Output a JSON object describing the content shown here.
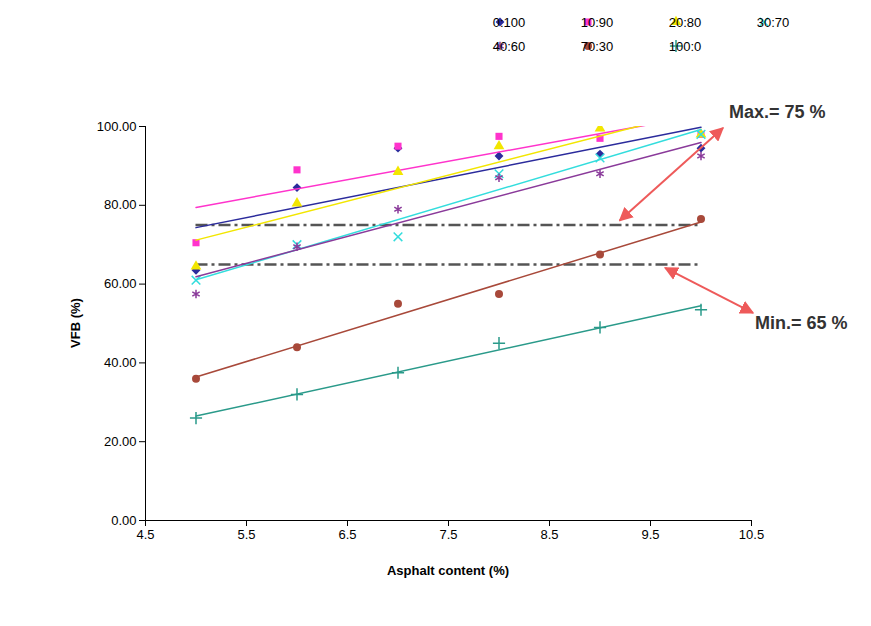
{
  "chart_data": {
    "type": "scatter",
    "x_label": "Asphalt content (%)",
    "y_label": "VFB (%)",
    "xlim": [
      4.5,
      10.5
    ],
    "xticks": [
      4.5,
      5.5,
      6.5,
      7.5,
      8.5,
      9.5,
      10.5
    ],
    "ylim": [
      0,
      100
    ],
    "yticks": [
      {
        "value": 0,
        "label": "0.00"
      },
      {
        "value": 20,
        "label": "20.00"
      },
      {
        "value": 40,
        "label": "40.00"
      },
      {
        "value": 60,
        "label": "60.00"
      },
      {
        "value": 80,
        "label": "80.00"
      },
      {
        "value": 100,
        "label": "100.00"
      }
    ],
    "grid": false,
    "legend": "top-right",
    "x": [
      5,
      6,
      7,
      8,
      9,
      10
    ],
    "series": [
      {
        "name": "0:100",
        "color": "#2b2b9c",
        "marker": "diamond",
        "line_style": "trend",
        "values": [
          63.5,
          84.5,
          94.5,
          92.5,
          93,
          94.5
        ]
      },
      {
        "name": "10:90",
        "color": "#ff33cc",
        "marker": "square",
        "line_style": "trend",
        "values": [
          70.5,
          89,
          95,
          97.5,
          97,
          98
        ]
      },
      {
        "name": "20:80",
        "color": "#f2e600",
        "marker": "triangle",
        "line_style": "trend",
        "values": [
          64.5,
          80.5,
          88.5,
          95,
          99.5,
          98
        ]
      },
      {
        "name": "30:70",
        "color": "#33dddd",
        "marker": "times",
        "line_style": "trend",
        "values": [
          61,
          70,
          72,
          88,
          92,
          98
        ]
      },
      {
        "name": "40:60",
        "color": "#8a3a9a",
        "marker": "asterisk",
        "line_style": "trend",
        "values": [
          57.5,
          69.5,
          79,
          87,
          88,
          92.5
        ]
      },
      {
        "name": "70:30",
        "color": "#a8493a",
        "marker": "circle",
        "line_style": "trend",
        "values": [
          36,
          44,
          55,
          57.5,
          67.5,
          76.5
        ]
      },
      {
        "name": "100:0",
        "color": "#2a9a8a",
        "marker": "plus",
        "line_style": "trend",
        "values": [
          26,
          32,
          37.5,
          45,
          49,
          53.5
        ]
      }
    ],
    "annotations": [
      {
        "text": "Max.= 75 %",
        "y": 75,
        "line_style": "dashed"
      },
      {
        "text": "Min.= 65 %",
        "y": 65,
        "line_style": "dashed"
      }
    ]
  }
}
